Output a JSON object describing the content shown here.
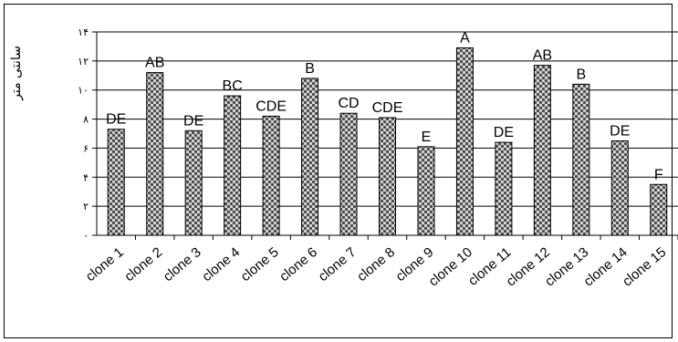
{
  "chart_data": {
    "type": "bar",
    "ylabel": "سانتی متر",
    "ylim": [
      0,
      14
    ],
    "yticks": [
      {
        "value": 0,
        "label": "۰"
      },
      {
        "value": 2,
        "label": "۲"
      },
      {
        "value": 4,
        "label": "۴"
      },
      {
        "value": 6,
        "label": "۶"
      },
      {
        "value": 8,
        "label": "۸"
      },
      {
        "value": 10,
        "label": "۱۰"
      },
      {
        "value": 12,
        "label": "۱۲"
      },
      {
        "value": 14,
        "label": "۱۴"
      }
    ],
    "grid": true,
    "categories": [
      "clone 1",
      "clone 2",
      "clone 3",
      "clone 4",
      "clone 5",
      "clone 6",
      "clone 7",
      "clone 8",
      "clone 9",
      "clone 10",
      "clone 11",
      "clone 12",
      "clone 13",
      "clone 14",
      "clone 15"
    ],
    "values": [
      7.3,
      11.2,
      7.2,
      9.6,
      8.2,
      10.8,
      8.4,
      8.1,
      6.1,
      12.9,
      6.4,
      11.7,
      10.4,
      6.5,
      3.5
    ],
    "labels": [
      "DE",
      "AB",
      "DE",
      "BC",
      "CDE",
      "B",
      "CD",
      "CDE",
      "E",
      "A",
      "DE",
      "AB",
      "B",
      "DE",
      "F"
    ]
  },
  "colors": {
    "bar_fill": "#d9d9d9",
    "bar_dots": "#4a4a4a",
    "bar_stroke": "#000000",
    "gridline": "#000000"
  }
}
